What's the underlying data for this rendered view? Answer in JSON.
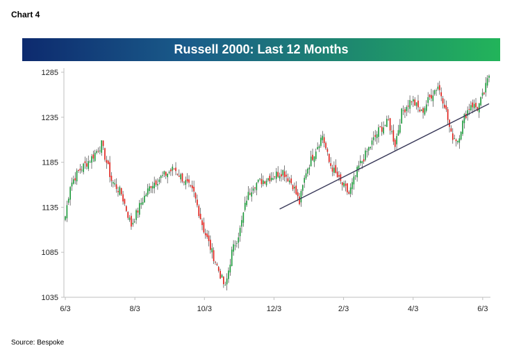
{
  "header": {
    "chart_label": "Chart 4"
  },
  "footer": {
    "source": "Source:  Bespoke"
  },
  "colors": {
    "up": "#1e9a3c",
    "down": "#e0201a",
    "trendline": "#3a3a5a",
    "banner_start": "#0d2a6e",
    "banner_end": "#22b45a"
  },
  "chart_data": {
    "type": "candlestick",
    "title": "Russell 2000: Last 12 Months",
    "xlabel": "",
    "ylabel": "",
    "ylim": [
      1035,
      1285
    ],
    "y_ticks": [
      "1285",
      "1235",
      "1185",
      "1135",
      "1085",
      "1035"
    ],
    "x_ticks": [
      "6/3",
      "8/3",
      "10/3",
      "12/3",
      "2/3",
      "4/3",
      "6/3"
    ],
    "grid": false,
    "trading_days": 258,
    "path_anchors": [
      {
        "day": 0,
        "close": 1125
      },
      {
        "day": 3,
        "close": 1160
      },
      {
        "day": 8,
        "close": 1175
      },
      {
        "day": 16,
        "close": 1190
      },
      {
        "day": 22,
        "close": 1205
      },
      {
        "day": 28,
        "close": 1165
      },
      {
        "day": 34,
        "close": 1150
      },
      {
        "day": 40,
        "close": 1115
      },
      {
        "day": 46,
        "close": 1140
      },
      {
        "day": 52,
        "close": 1160
      },
      {
        "day": 58,
        "close": 1168
      },
      {
        "day": 66,
        "close": 1178
      },
      {
        "day": 72,
        "close": 1165
      },
      {
        "day": 78,
        "close": 1150
      },
      {
        "day": 84,
        "close": 1110
      },
      {
        "day": 90,
        "close": 1080
      },
      {
        "day": 94,
        "close": 1060
      },
      {
        "day": 97,
        "close": 1045
      },
      {
        "day": 101,
        "close": 1085
      },
      {
        "day": 106,
        "close": 1110
      },
      {
        "day": 110,
        "close": 1145
      },
      {
        "day": 114,
        "close": 1160
      },
      {
        "day": 120,
        "close": 1165
      },
      {
        "day": 126,
        "close": 1170
      },
      {
        "day": 132,
        "close": 1175
      },
      {
        "day": 138,
        "close": 1160
      },
      {
        "day": 142,
        "close": 1140
      },
      {
        "day": 146,
        "close": 1175
      },
      {
        "day": 152,
        "close": 1200
      },
      {
        "day": 156,
        "close": 1215
      },
      {
        "day": 160,
        "close": 1185
      },
      {
        "day": 166,
        "close": 1165
      },
      {
        "day": 172,
        "close": 1150
      },
      {
        "day": 178,
        "close": 1180
      },
      {
        "day": 184,
        "close": 1200
      },
      {
        "day": 190,
        "close": 1220
      },
      {
        "day": 196,
        "close": 1230
      },
      {
        "day": 200,
        "close": 1205
      },
      {
        "day": 204,
        "close": 1240
      },
      {
        "day": 210,
        "close": 1255
      },
      {
        "day": 216,
        "close": 1240
      },
      {
        "day": 222,
        "close": 1260
      },
      {
        "day": 226,
        "close": 1270
      },
      {
        "day": 230,
        "close": 1250
      },
      {
        "day": 234,
        "close": 1215
      },
      {
        "day": 238,
        "close": 1210
      },
      {
        "day": 242,
        "close": 1235
      },
      {
        "day": 246,
        "close": 1250
      },
      {
        "day": 250,
        "close": 1245
      },
      {
        "day": 254,
        "close": 1262
      },
      {
        "day": 257,
        "close": 1282
      }
    ],
    "trendline": {
      "start_day": 130,
      "start_value": 1133,
      "end_day": 257,
      "end_value": 1250
    }
  }
}
